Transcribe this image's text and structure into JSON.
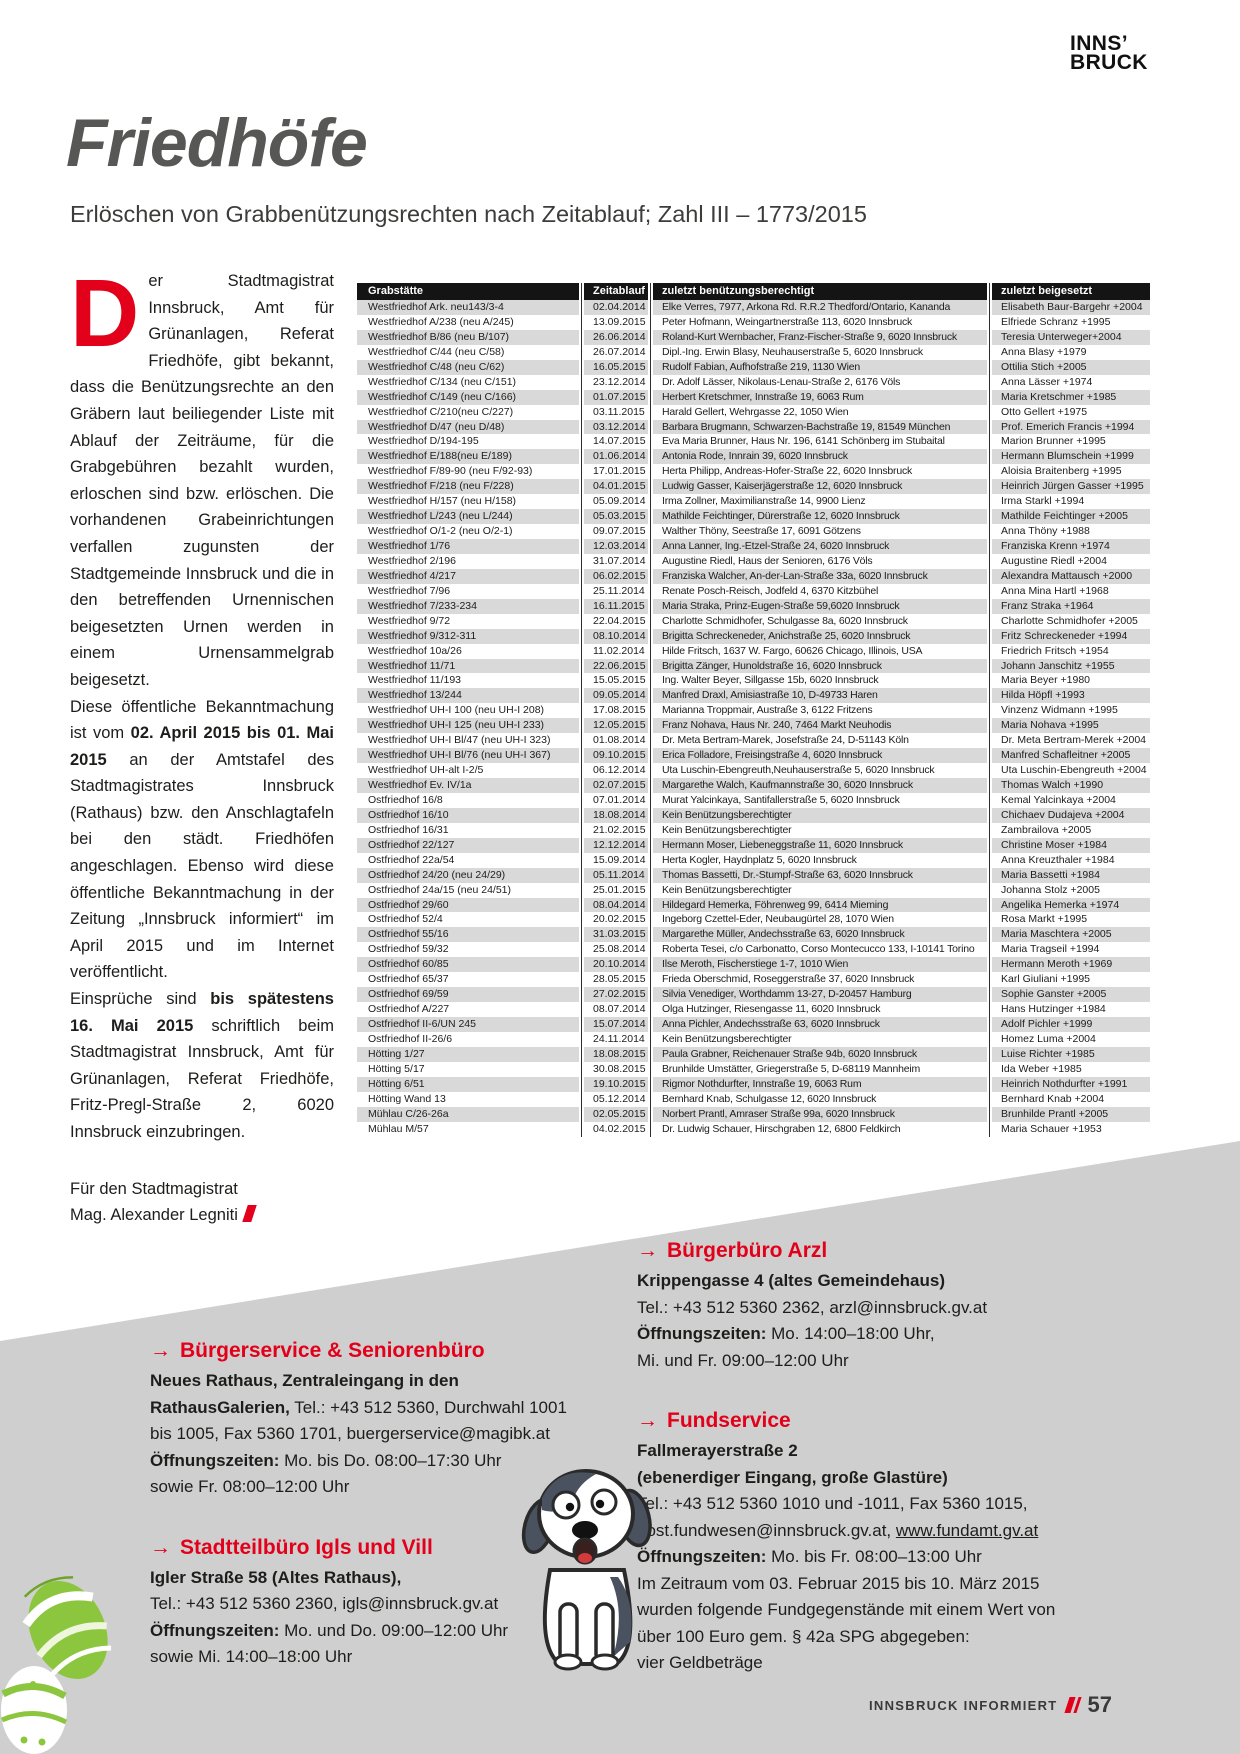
{
  "colors": {
    "accent_red": "#e2001a",
    "title_gray": "#575756",
    "table_header_bg": "#141414",
    "row_gray": "#d9d9d9",
    "wedge_gray": "#cfcfcf",
    "egg_green": "#8cc63e"
  },
  "logo": {
    "line1": "INNS’",
    "line2": "BRUCK"
  },
  "header": {
    "title": "Friedhöfe",
    "subtitle": "Erlöschen von Grabbenützungsrechten nach Zeitablauf; Zahl III – 1773/2015"
  },
  "intro": {
    "drop_cap": "D",
    "paragraphs": [
      [
        {
          "t": "er Stadtmagistrat Innsbruck, Amt für Grünanlagen, Referat Friedhöfe, gibt bekannt, dass die Benützungsrechte an den Gräbern laut beiliegender Liste mit Ablauf der Zeiträume, für die Grabgebühren bezahlt wurden, erloschen sind bzw. erlöschen. Die vorhandenen Grabeinrichtungen verfallen zugunsten der Stadtgemeinde Innsbruck und die in den betreffenden Urnennischen beigesetzten Urnen werden in einem Urnensammelgrab beigesetzt."
        }
      ],
      [
        {
          "t": "Diese öffentliche Bekanntmachung ist vom "
        },
        {
          "t": "02. April 2015 bis 01. Mai 2015",
          "b": true
        },
        {
          "t": " an der Amtstafel des Stadtmagistrates Innsbruck (Rathaus) bzw. den Anschlagtafeln bei den städt. Friedhöfen angeschlagen. Ebenso wird diese öffentliche Bekanntmachung in der Zeitung „Innsbruck informiert“ im April 2015 und im Internet veröffentlicht."
        }
      ],
      [
        {
          "t": "Einsprüche sind "
        },
        {
          "t": "bis spätestens 16. Mai 2015",
          "b": true
        },
        {
          "t": " schriftlich beim Stadtmagistrat Innsbruck, Amt für Grünanlagen, Referat Friedhöfe, Fritz-Pregl-Straße 2, 6020 Innsbruck einzubringen."
        }
      ]
    ],
    "signoff_line1": "Für den Stadtmagistrat",
    "signoff_line2": "Mag. Alexander Legniti"
  },
  "table": {
    "columns": [
      "Grabstätte",
      "Zeitablauf",
      "zuletzt benützungsberechtigt",
      "zuletzt beigesetzt"
    ],
    "rows": [
      [
        "Westfriedhof Ark. neu143/3-4",
        "02.04.2014",
        "Elke Verres, 7977, Arkona Rd. R.R.2 Thedford/Ontario, Kananda",
        "Elisabeth Baur-Bargehr +2004"
      ],
      [
        "Westfriedhof A/238 (neu A/245)",
        "13.09.2015",
        "Peter Hofmann, Weingartnerstraße 113, 6020 Innsbruck",
        "Elfriede Schranz +1995"
      ],
      [
        "Westfriedhof B/86 (neu B/107)",
        "26.06.2014",
        "Roland-Kurt Wernbacher, Franz-Fischer-Straße 9, 6020 Innsbruck",
        "Teresia Unterweger+2004"
      ],
      [
        "Westfriedhof C/44 (neu C/58)",
        "26.07.2014",
        "Dipl.-Ing. Erwin Blasy, Neuhauserstraße 5, 6020 Innsbruck",
        "Anna Blasy +1979"
      ],
      [
        "Westfriedhof C/48 (neu C/62)",
        "16.05.2015",
        "Rudolf Fabian, Aufhofstraße 219, 1130 Wien",
        "Ottilia Stich +2005"
      ],
      [
        "Westfriedhof C/134 (neu C/151)",
        "23.12.2014",
        "Dr. Adolf Lässer, Nikolaus-Lenau-Straße 2, 6176 Völs",
        "Anna Lässer +1974"
      ],
      [
        "Westfriedhof C/149 (neu C/166)",
        "01.07.2015",
        "Herbert Kretschmer, Innstraße 19, 6063 Rum",
        "Maria Kretschmer +1985"
      ],
      [
        "Westfriedhof C/210(neu C/227)",
        "03.11.2015",
        "Harald Gellert, Wehrgasse 22, 1050 Wien",
        "Otto Gellert +1975"
      ],
      [
        "Westfriedhof D/47 (neu D/48)",
        "03.12.2014",
        "Barbara Brugmann, Schwarzen-Bachstraße 19, 81549 München",
        "Prof. Emerich Francis +1994"
      ],
      [
        "Westfriedhof D/194-195",
        "14.07.2015",
        "Eva Maria Brunner, Haus Nr. 196, 6141 Schönberg im Stubaital",
        "Marion Brunner +1995"
      ],
      [
        "Westfriedhof E/188(neu E/189)",
        "01.06.2014",
        "Antonia Rode, Innrain 39, 6020 Innsbruck",
        "Hermann Blumschein +1999"
      ],
      [
        "Westfriedhof F/89-90 (neu F/92-93)",
        "17.01.2015",
        "Herta Philipp, Andreas-Hofer-Straße 22, 6020 Innsbruck",
        "Aloisia Braitenberg +1995"
      ],
      [
        "Westfriedhof F/218 (neu F/228)",
        "04.01.2015",
        "Ludwig Gasser, Kaiserjägerstraße 12, 6020 Innsbruck",
        "Heinrich Jürgen Gasser +1995"
      ],
      [
        "Westfriedhof H/157 (neu H/158)",
        "05.09.2014",
        "Irma Zollner, Maximilianstraße 14, 9900 Lienz",
        "Irma Starkl +1994"
      ],
      [
        "Westfriedhof L/243 (neu L/244)",
        "05.03.2015",
        "Mathilde Feichtinger, Dürerstraße 12, 6020 Innsbruck",
        "Mathilde Feichtinger +2005"
      ],
      [
        "Westfriedhof O/1-2 (neu O/2-1)",
        "09.07.2015",
        "Walther Thöny, Seestraße 17, 6091 Götzens",
        "Anna Thöny +1988"
      ],
      [
        "Westfriedhof 1/76",
        "12.03.2014",
        "Anna Lanner, Ing.-Etzel-Straße 24, 6020 Innsbruck",
        "Franziska Krenn +1974"
      ],
      [
        "Westfriedhof 2/196",
        "31.07.2014",
        "Augustine Riedl, Haus der Senioren, 6176 Völs",
        "Augustine Riedl +2004"
      ],
      [
        "Westfriedhof 4/217",
        "06.02.2015",
        "Franziska Walcher, An-der-Lan-Straße 33a, 6020 Innsbruck",
        "Alexandra Mattausch +2000"
      ],
      [
        "Westfriedhof 7/96",
        "25.11.2014",
        "Renate Posch-Reisch, Jodfeld 4, 6370 Kitzbühel",
        "Anna Mina Hartl +1968"
      ],
      [
        "Westfriedhof 7/233-234",
        "16.11.2015",
        "Maria Straka, Prinz-Eugen-Straße 59,6020 Innsbruck",
        "Franz Straka +1964"
      ],
      [
        "Westfriedhof 9/72",
        "22.04.2015",
        "Charlotte Schmidhofer, Schulgasse 8a, 6020 Innsbruck",
        "Charlotte Schmidhofer +2005"
      ],
      [
        "Westfriedhof 9/312-311",
        "08.10.2014",
        "Brigitta Schreckeneder, Anichstraße 25, 6020 Innsbruck",
        "Fritz Schreckeneder +1994"
      ],
      [
        "Westfriedhof 10a/26",
        "11.02.2014",
        "Hilde Fritsch, 1637 W. Fargo, 60626 Chicago, Illinois, USA",
        "Friedrich Fritsch +1954"
      ],
      [
        "Westfriedhof 11/71",
        "22.06.2015",
        "Brigitta Zänger, Hunoldstraße 16, 6020 Innsbruck",
        "Johann Janschitz +1955"
      ],
      [
        "Westfriedhof 11/193",
        "15.05.2015",
        "Ing. Walter Beyer, Sillgasse 15b, 6020 Innsbruck",
        "Maria Beyer +1980"
      ],
      [
        "Westfriedhof 13/244",
        "09.05.2014",
        "Manfred Draxl, Amisiastraße 10, D-49733 Haren",
        "Hilda Höpfl +1993"
      ],
      [
        "Westfriedhof UH-I 100 (neu UH-I 208)",
        "17.08.2015",
        "Marianna Troppmair, Austraße 3, 6122 Fritzens",
        "Vinzenz Widmann +1995"
      ],
      [
        "Westfriedhof UH-I 125 (neu UH-I 233)",
        "12.05.2015",
        "Franz Nohava, Haus Nr. 240, 7464 Markt Neuhodis",
        "Maria Nohava +1995"
      ],
      [
        "Westfriedhof UH-I Bl/47 (neu UH-I 323)",
        "01.08.2014",
        "Dr. Meta Bertram-Marek, Josefstraße 24, D-51143 Köln",
        "Dr. Meta Bertram-Merek +2004"
      ],
      [
        "Westfriedhof UH-I Bl/76 (neu UH-I 367)",
        "09.10.2015",
        "Erica Folladore, Freisingstraße 4, 6020 Innsbruck",
        "Manfred Schafleitner +2005"
      ],
      [
        "Westfriedhof UH-alt I-2/5",
        "06.12.2014",
        "Uta Luschin-Ebengreuth,Neuhauserstraße 5, 6020 Innsbruck",
        "Uta Luschin-Ebengreuth +2004"
      ],
      [
        "Westfriedhof Ev. IV/1a",
        "02.07.2015",
        "Margarethe Walch, Kaufmannstraße 30, 6020 Innsbruck",
        "Thomas Walch +1990"
      ],
      [
        "Ostfriedhof 16/8",
        "07.01.2014",
        "Murat Yalcinkaya, Santifallerstraße 5, 6020 Innsbruck",
        "Kemal Yalcinkaya +2004"
      ],
      [
        "Ostfriedhof 16/10",
        "18.08.2014",
        "Kein Benützungsberechtigter",
        "Chichaev Dudajeva +2004"
      ],
      [
        "Ostfriedhof 16/31",
        "21.02.2015",
        "Kein Benützungsberechtigter",
        "Zambrailova +2005"
      ],
      [
        "Ostfriedhof 22/127",
        "12.12.2014",
        "Hermann Moser, Liebeneggstraße 11, 6020 Innsbruck",
        "Christine Moser +1984"
      ],
      [
        "Ostfriedhof 22a/54",
        "15.09.2014",
        "Herta Kogler, Haydnplatz 5, 6020 Innsbruck",
        "Anna Kreuzthaler +1984"
      ],
      [
        "Ostfriedhof 24/20 (neu 24/29)",
        "05.11.2014",
        "Thomas Bassetti, Dr.-Stumpf-Straße 63, 6020 Innsbruck",
        "Maria Bassetti +1984"
      ],
      [
        "Ostfriedhof 24a/15 (neu 24/51)",
        "25.01.2015",
        "Kein Benützungsberechtigter",
        "Johanna Stolz +2005"
      ],
      [
        "Ostfriedhof 29/60",
        "08.04.2014",
        "Hildegard Hemerka, Föhrenweg 99, 6414 Mieming",
        "Angelika Hemerka +1974"
      ],
      [
        "Ostfriedhof 52/4",
        "20.02.2015",
        "Ingeborg Czettel-Eder, Neubaugürtel 28, 1070 Wien",
        "Rosa Markt +1995"
      ],
      [
        "Ostfriedhof 55/16",
        "31.03.2015",
        "Margarethe Müller, Andechsstraße 63, 6020 Innsbruck",
        "Maria Maschtera +2005"
      ],
      [
        "Ostfriedhof 59/32",
        "25.08.2014",
        "Roberta Tesei, c/o Carbonatto, Corso Montecucco 133, I-10141 Torino",
        "Maria Tragseil +1994"
      ],
      [
        "Ostfriedhof 60/85",
        "20.10.2014",
        "Ilse Meroth, Fischerstiege 1-7, 1010 Wien",
        "Hermann Meroth +1969"
      ],
      [
        "Ostfriedhof 65/37",
        "28.05.2015",
        "Frieda Oberschmid, Roseggerstraße 37, 6020 Innsbruck",
        "Karl Giuliani +1995"
      ],
      [
        "Ostfriedhof 69/59",
        "27.02.2015",
        "Silvia Venediger, Worthdamm 13-27, D-20457 Hamburg",
        "Sophie Ganster +2005"
      ],
      [
        "Ostfriedhof A/227",
        "08.07.2014",
        "Olga Hutzinger, Riesengasse 11, 6020 Innsbruck",
        "Hans Hutzinger +1984"
      ],
      [
        "Ostfriedhof II-6/UN 245",
        "15.07.2014",
        "Anna Pichler, Andechsstraße 63, 6020 Innsbruck",
        "Adolf Pichler +1999"
      ],
      [
        "Ostfriedhof II-26/6",
        "24.11.2014",
        "Kein Benützungsberechtigter",
        "Homez Luma +2004"
      ],
      [
        "Hötting 1/27",
        "18.08.2015",
        "Paula Grabner, Reichenauer Straße 94b, 6020 Innsbruck",
        "Luise Richter +1985"
      ],
      [
        "Hötting 5/17",
        "30.08.2015",
        "Brunhilde Umstätter, Griegerstraße 5, D-68119 Mannheim",
        "Ida Weber +1985"
      ],
      [
        "Hötting 6/51",
        "19.10.2015",
        "Rigmor Nothdurfter, Innstraße 19, 6063 Rum",
        "Heinrich Nothdurfter +1991"
      ],
      [
        "Hötting Wand 13",
        "05.12.2014",
        "Bernhard Knab, Schulgasse 12, 6020 Innsbruck",
        "Bernhard Knab +2004"
      ],
      [
        "Mühlau C/26-26a",
        "02.05.2015",
        "Norbert Prantl, Amraser Straße 99a, 6020 Innsbruck",
        "Brunhilde Prantl +2005"
      ],
      [
        "Mühlau M/57",
        "04.02.2015",
        "Dr. Ludwig Schauer, Hirschgraben 12, 6800 Feldkirch",
        "Maria Schauer +1953"
      ]
    ]
  },
  "contacts": {
    "left": [
      {
        "title": "Bürgerservice & Seniorenbüro",
        "lines": [
          [
            {
              "t": "Neues Rathaus, Zentraleingang in den",
              "b": true
            }
          ],
          [
            {
              "t": "RathausGalerien,",
              "b": true
            },
            {
              "t": " Tel.: +43 512 5360, Durchwahl 1001"
            }
          ],
          [
            {
              "t": "bis 1005, Fax 5360 1701, buergerservice@magibk.at"
            }
          ],
          [
            {
              "t": "Öffnungszeiten:",
              "b": true
            },
            {
              "t": " Mo. bis Do. 08:00–17:30 Uhr"
            }
          ],
          [
            {
              "t": "sowie Fr. 08:00–12:00 Uhr"
            }
          ]
        ]
      },
      {
        "title": "Stadtteilbüro Igls und Vill",
        "lines": [
          [
            {
              "t": "Igler Straße 58 (Altes Rathaus),",
              "b": true
            }
          ],
          [
            {
              "t": "Tel.: +43 512 5360 2360, igls@innsbruck.gv.at"
            }
          ],
          [
            {
              "t": "Öffnungszeiten:",
              "b": true
            },
            {
              "t": " Mo. und Do. 09:00–12:00 Uhr"
            }
          ],
          [
            {
              "t": "sowie Mi. 14:00–18:00 Uhr"
            }
          ]
        ]
      }
    ],
    "right": [
      {
        "title": "Bürgerbüro Arzl",
        "lines": [
          [
            {
              "t": "Krippengasse 4 (altes Gemeindehaus)",
              "b": true
            }
          ],
          [
            {
              "t": "Tel.: +43 512 5360 2362, arzl@innsbruck.gv.at"
            }
          ],
          [
            {
              "t": "Öffnungszeiten:",
              "b": true
            },
            {
              "t": " Mo. 14:00–18:00 Uhr,"
            }
          ],
          [
            {
              "t": "Mi. und Fr. 09:00–12:00 Uhr"
            }
          ]
        ]
      },
      {
        "title": "Fundservice",
        "lines": [
          [
            {
              "t": "Fallmerayerstraße 2",
              "b": true
            }
          ],
          [
            {
              "t": "(ebenerdiger Eingang, große Glastüre)",
              "b": true
            }
          ],
          [
            {
              "t": "Tel.: +43 512 5360 1010 und -1011, Fax 5360 1015,"
            }
          ],
          [
            {
              "t": "post.fundwesen@innsbruck.gv.at, "
            },
            {
              "t": "www.fundamt.gv.at",
              "u": true
            }
          ],
          [
            {
              "t": "Öffnungszeiten:",
              "b": true
            },
            {
              "t": " Mo. bis Fr. 08:00–13:00 Uhr"
            }
          ],
          [
            {
              "t": "Im Zeitraum vom 03. Februar 2015 bis 10. März 2015"
            }
          ],
          [
            {
              "t": "wurden folgende Fundgegenstände mit einem Wert von"
            }
          ],
          [
            {
              "t": "über 100 Euro gem. § 42a SPG abgegeben:"
            }
          ],
          [
            {
              "t": "vier Geldbeträge"
            }
          ]
        ]
      }
    ]
  },
  "footer": {
    "magazine": "INNSBRUCK INFORMIERT",
    "page_number": "57"
  }
}
